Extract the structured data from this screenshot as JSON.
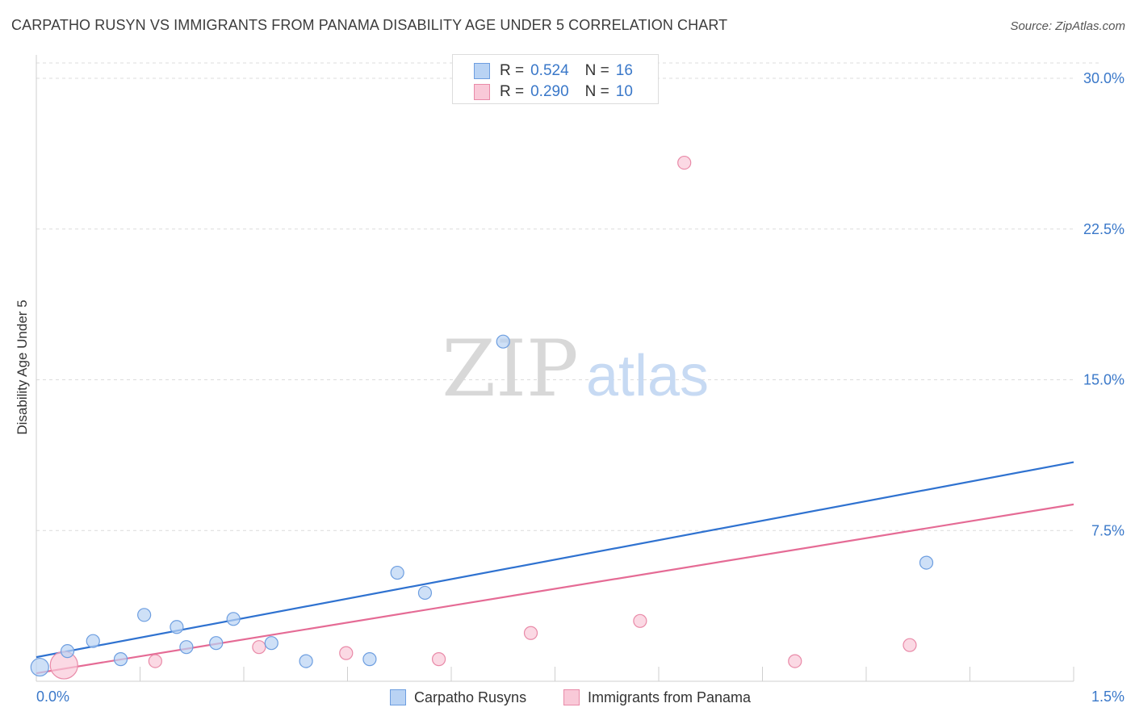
{
  "title": "CARPATHO RUSYN VS IMMIGRANTS FROM PANAMA DISABILITY AGE UNDER 5 CORRELATION CHART",
  "source": "Source: ZipAtlas.com",
  "watermark": {
    "zip": "ZIP",
    "atlas": "atlas"
  },
  "legend": {
    "r_label": "R =",
    "n_label": "N =",
    "rows": [
      {
        "r": "0.524",
        "n": "16"
      },
      {
        "r": "0.290",
        "n": "10"
      }
    ]
  },
  "colors": {
    "blue_fill": "#b9d3f4",
    "blue_stroke": "#6d9ee0",
    "blue_line": "#2f72d0",
    "pink_fill": "#f9c9d8",
    "pink_stroke": "#e98aa8",
    "pink_line": "#e56b95",
    "axis_text": "#3a78c9",
    "grid": "#dcdcdc"
  },
  "chart_data": {
    "type": "scatter",
    "title": "CARPATHO RUSYN VS IMMIGRANTS FROM PANAMA DISABILITY AGE UNDER 5 CORRELATION CHART",
    "xlabel": "",
    "ylabel": "Disability Age Under 5",
    "xlim": [
      0,
      1.5
    ],
    "ylim": [
      0,
      30
    ],
    "x_tick_labels": [
      {
        "value": 0,
        "label": "0.0%"
      },
      {
        "value": 1.5,
        "label": "1.5%"
      }
    ],
    "y_ticks": [
      {
        "value": 7.5,
        "label": "7.5%"
      },
      {
        "value": 15,
        "label": "15.0%"
      },
      {
        "value": 22.5,
        "label": "22.5%"
      },
      {
        "value": 30,
        "label": "30.0%"
      }
    ],
    "series": [
      {
        "name": "Carpatho Rusyns",
        "color": "blue",
        "points": [
          {
            "x": 0.005,
            "y": 0.7,
            "size": "large"
          },
          {
            "x": 0.045,
            "y": 1.5
          },
          {
            "x": 0.082,
            "y": 2.0
          },
          {
            "x": 0.122,
            "y": 1.1
          },
          {
            "x": 0.156,
            "y": 3.3
          },
          {
            "x": 0.203,
            "y": 2.7
          },
          {
            "x": 0.217,
            "y": 1.7
          },
          {
            "x": 0.26,
            "y": 1.9
          },
          {
            "x": 0.285,
            "y": 3.1
          },
          {
            "x": 0.34,
            "y": 1.9
          },
          {
            "x": 0.39,
            "y": 1.0
          },
          {
            "x": 0.482,
            "y": 1.1
          },
          {
            "x": 0.522,
            "y": 5.4
          },
          {
            "x": 0.562,
            "y": 4.4
          },
          {
            "x": 0.675,
            "y": 16.9
          },
          {
            "x": 1.287,
            "y": 5.9
          }
        ],
        "trend": {
          "x0": 0,
          "y0": 1.2,
          "x1": 1.5,
          "y1": 10.9
        }
      },
      {
        "name": "Immigrants from Panama",
        "color": "pink",
        "points": [
          {
            "x": 0.04,
            "y": 0.8,
            "size": "xlarge"
          },
          {
            "x": 0.172,
            "y": 1.0
          },
          {
            "x": 0.322,
            "y": 1.7
          },
          {
            "x": 0.448,
            "y": 1.4
          },
          {
            "x": 0.582,
            "y": 1.1
          },
          {
            "x": 0.715,
            "y": 2.4
          },
          {
            "x": 0.873,
            "y": 3.0
          },
          {
            "x": 0.937,
            "y": 25.8
          },
          {
            "x": 1.097,
            "y": 1.0
          },
          {
            "x": 1.263,
            "y": 1.8
          }
        ],
        "trend": {
          "x0": 0,
          "y0": 0.4,
          "x1": 1.5,
          "y1": 8.8
        }
      }
    ]
  }
}
